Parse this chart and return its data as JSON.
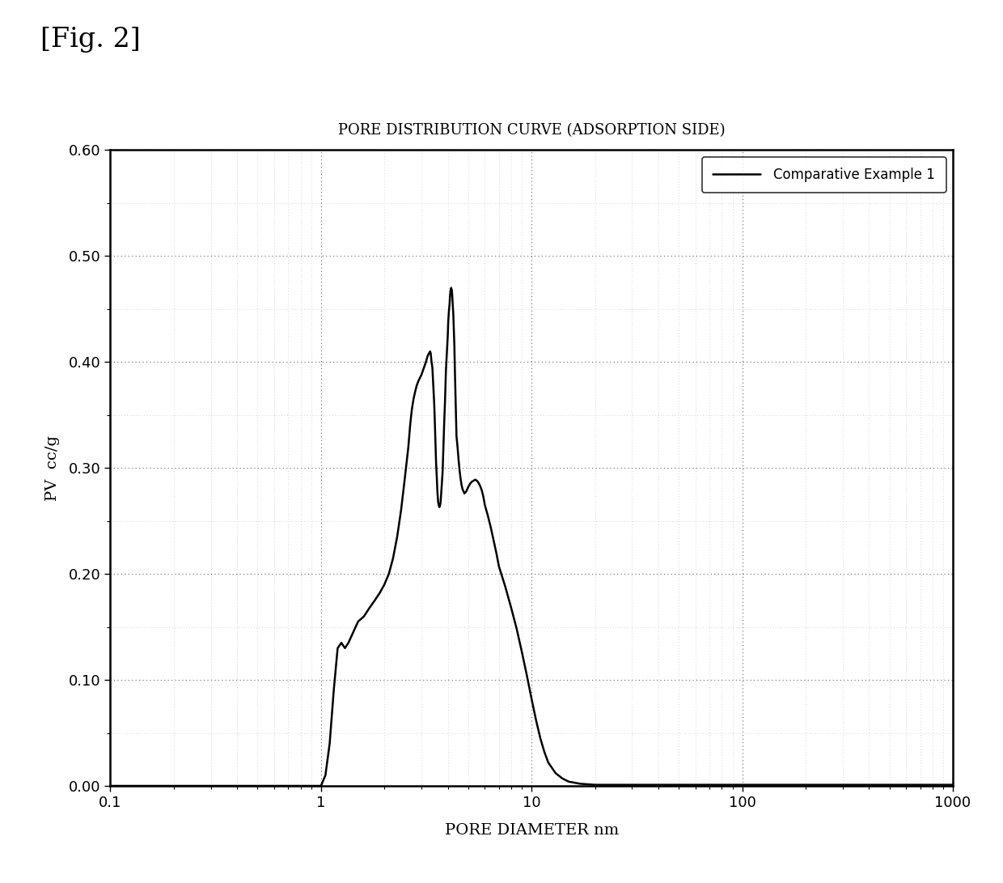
{
  "title": "PORE DISTRIBUTION CURVE (ADSORPTION SIDE)",
  "xlabel": "PORE DIAMETER nm",
  "ylabel": "PV  cc/g",
  "fig_label": "[Fig. 2]",
  "legend_label": "Comparative Example 1",
  "line_color": "#000000",
  "background_color": "#ffffff",
  "xlim": [
    0.1,
    1000
  ],
  "ylim": [
    0.0,
    0.6
  ],
  "yticks": [
    0.0,
    0.1,
    0.2,
    0.3,
    0.4,
    0.5,
    0.6
  ],
  "x_pts": [
    0.1,
    0.5,
    0.85,
    0.9,
    0.95,
    1.0,
    1.05,
    1.1,
    1.15,
    1.2,
    1.25,
    1.3,
    1.35,
    1.5,
    1.6,
    1.7,
    1.8,
    1.9,
    2.0,
    2.1,
    2.2,
    2.3,
    2.4,
    2.5,
    2.6,
    2.65,
    2.7,
    2.75,
    2.8,
    2.85,
    2.9,
    2.95,
    3.0,
    3.05,
    3.1,
    3.15,
    3.2,
    3.25,
    3.3,
    3.32,
    3.35,
    3.38,
    3.4,
    3.42,
    3.45,
    3.47,
    3.5,
    3.52,
    3.55,
    3.57,
    3.6,
    3.62,
    3.65,
    3.68,
    3.7,
    3.72,
    3.75,
    3.78,
    3.8,
    3.82,
    3.85,
    3.88,
    3.9,
    3.92,
    3.95,
    3.97,
    4.0,
    4.02,
    4.05,
    4.08,
    4.1,
    4.12,
    4.15,
    4.18,
    4.2,
    4.22,
    4.25,
    4.27,
    4.3,
    4.32,
    4.35,
    4.38,
    4.4,
    4.45,
    4.5,
    4.55,
    4.6,
    4.65,
    4.7,
    4.75,
    4.8,
    4.9,
    5.0,
    5.1,
    5.2,
    5.3,
    5.4,
    5.5,
    5.6,
    5.7,
    5.8,
    5.9,
    6.0,
    6.2,
    6.4,
    6.6,
    6.8,
    7.0,
    7.5,
    8.0,
    8.5,
    9.0,
    9.5,
    10.0,
    10.5,
    11.0,
    11.5,
    12.0,
    13.0,
    14.0,
    15.0,
    16.0,
    17.0,
    20.0,
    25.0,
    30.0,
    50.0,
    100.0,
    200.0,
    500.0,
    1000.0
  ],
  "y_pts": [
    0.0,
    0.0,
    0.0,
    0.0,
    0.0,
    0.0,
    0.01,
    0.04,
    0.09,
    0.13,
    0.135,
    0.13,
    0.135,
    0.155,
    0.16,
    0.168,
    0.175,
    0.182,
    0.19,
    0.2,
    0.215,
    0.235,
    0.26,
    0.29,
    0.32,
    0.34,
    0.355,
    0.365,
    0.372,
    0.378,
    0.382,
    0.385,
    0.388,
    0.392,
    0.396,
    0.4,
    0.405,
    0.408,
    0.41,
    0.408,
    0.4,
    0.395,
    0.385,
    0.375,
    0.36,
    0.345,
    0.32,
    0.305,
    0.29,
    0.278,
    0.268,
    0.265,
    0.263,
    0.265,
    0.268,
    0.275,
    0.285,
    0.296,
    0.31,
    0.325,
    0.345,
    0.362,
    0.378,
    0.392,
    0.405,
    0.415,
    0.425,
    0.438,
    0.448,
    0.455,
    0.462,
    0.467,
    0.47,
    0.468,
    0.463,
    0.455,
    0.445,
    0.432,
    0.415,
    0.395,
    0.37,
    0.345,
    0.33,
    0.32,
    0.308,
    0.298,
    0.29,
    0.284,
    0.28,
    0.278,
    0.276,
    0.278,
    0.282,
    0.285,
    0.287,
    0.288,
    0.289,
    0.288,
    0.286,
    0.283,
    0.279,
    0.273,
    0.265,
    0.255,
    0.244,
    0.232,
    0.22,
    0.207,
    0.188,
    0.168,
    0.148,
    0.126,
    0.104,
    0.082,
    0.062,
    0.045,
    0.032,
    0.022,
    0.012,
    0.007,
    0.004,
    0.003,
    0.002,
    0.001,
    0.001,
    0.001,
    0.001,
    0.001,
    0.001,
    0.001,
    0.001
  ]
}
